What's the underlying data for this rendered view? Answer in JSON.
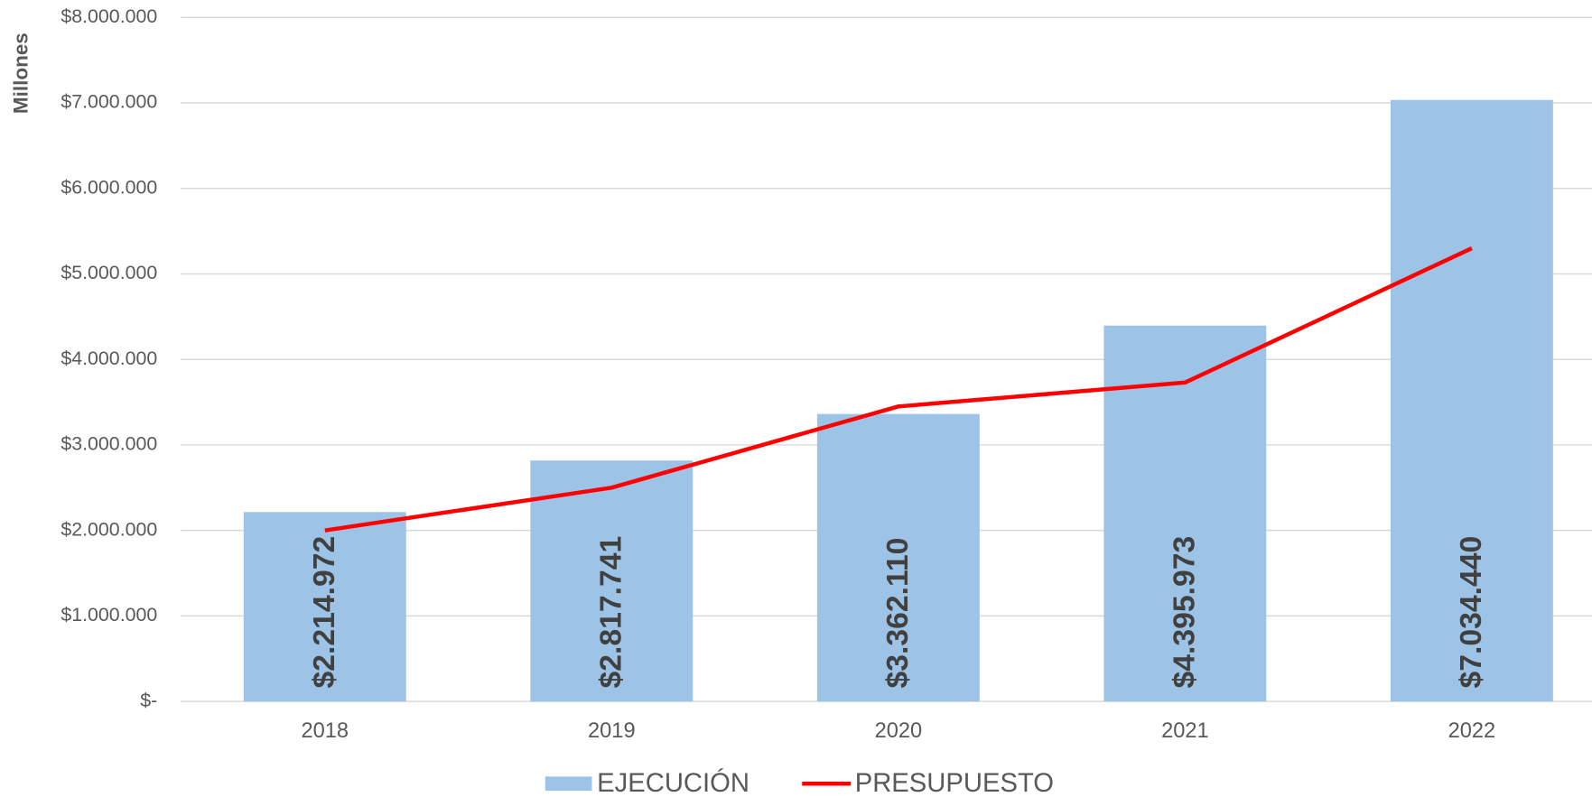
{
  "chart_data": {
    "type": "bar_line",
    "y_axis_label": "Millones",
    "categories": [
      "2018",
      "2019",
      "2020",
      "2021",
      "2022"
    ],
    "series": [
      {
        "name": "EJECUCIÓN",
        "type": "bar",
        "color": "#9dc3e6",
        "values": [
          2214972,
          2817741,
          3362110,
          4395973,
          7034440
        ],
        "value_labels": [
          "$2.214.972",
          "$2.817.741",
          "$3.362.110",
          "$4.395.973",
          "$7.034.440"
        ]
      },
      {
        "name": "PRESUPUESTO",
        "type": "line",
        "color": "#ff0000",
        "values": [
          2000000,
          2500000,
          3450000,
          3730000,
          5300000
        ]
      }
    ],
    "ylim": [
      0,
      8000000
    ],
    "yticks": [
      {
        "value": 0,
        "label": "$-"
      },
      {
        "value": 1000000,
        "label": "$1.000.000"
      },
      {
        "value": 2000000,
        "label": "$2.000.000"
      },
      {
        "value": 3000000,
        "label": "$3.000.000"
      },
      {
        "value": 4000000,
        "label": "$4.000.000"
      },
      {
        "value": 5000000,
        "label": "$5.000.000"
      },
      {
        "value": 6000000,
        "label": "$6.000.000"
      },
      {
        "value": 7000000,
        "label": "$7.000.000"
      },
      {
        "value": 8000000,
        "label": "$8.000.000"
      }
    ],
    "grid": true,
    "legend": "bottom"
  }
}
